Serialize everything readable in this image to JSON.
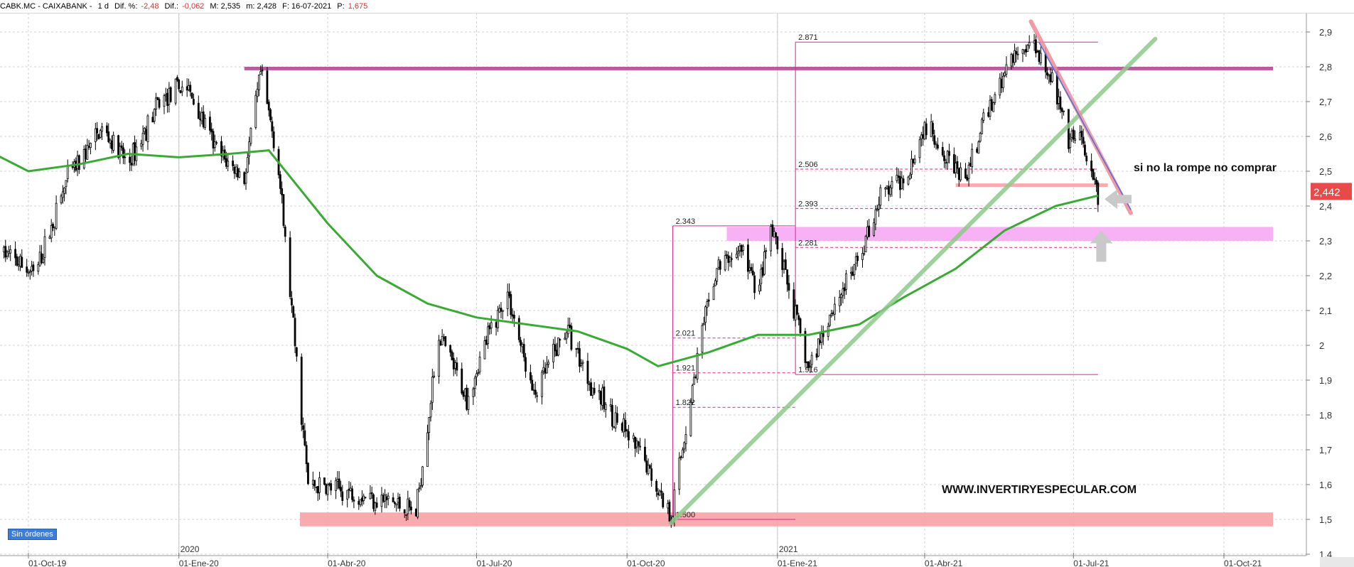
{
  "header": {
    "symbol": "CABK.MC - CAIXABANK -",
    "timeframe": "1 d",
    "dif_pct_label": "Dif. %:",
    "dif_pct_value": "-2,48",
    "dif_label": "Dif.:",
    "dif_value": "-0,062",
    "m": "M: 2,535",
    "m2": "m: 2,428",
    "date": "F: 16-07-2021",
    "p_label": "P:",
    "p_value": "1,675"
  },
  "sin_ordenes": "Sin órdenes",
  "price_badge": "2,442",
  "colors": {
    "candles": "#000000",
    "ma": "#3aaa35",
    "trend_up": "#8fc98b",
    "trend_down": "#f08a9a",
    "resistance": "#b04a96",
    "zone_pink": "#f7a9f3",
    "zone_red": "#f6a2a6",
    "fib": "#e0238a",
    "badge": "#e84a4a"
  },
  "chart_data": {
    "type": "candlestick",
    "title": "",
    "ylim": [
      1.4,
      2.95
    ],
    "yticks": [
      "2,9",
      "2,8",
      "2,7",
      "2,6",
      "2,5",
      "2,4",
      "2,3",
      "2,2",
      "2,1",
      "2",
      "1,9",
      "1,8",
      "1,7",
      "1,6",
      "1,5",
      "1,4"
    ],
    "xlabels": [
      {
        "date": "2019-10-01",
        "label": "01-Oct-19"
      },
      {
        "date": "2020-01-01",
        "label": "01-Ene-20"
      },
      {
        "date": "2020-04-01",
        "label": "01-Abr-20"
      },
      {
        "date": "2020-07-01",
        "label": "01-Jul-20"
      },
      {
        "date": "2020-10-01",
        "label": "01-Oct-20"
      },
      {
        "date": "2021-01-01",
        "label": "01-Ene-21"
      },
      {
        "date": "2021-04-01",
        "label": "01-Abr-21"
      },
      {
        "date": "2021-07-01",
        "label": "01-Jul-21"
      },
      {
        "date": "2021-10-01",
        "label": "01-Oct-21"
      }
    ],
    "year_labels": [
      {
        "date": "2020-01-01",
        "label": "2020"
      },
      {
        "date": "2021-01-01",
        "label": "2021"
      }
    ],
    "price_path": [
      [
        "2019-09-15",
        2.27
      ],
      [
        "2019-10-05",
        2.2
      ],
      [
        "2019-10-25",
        2.48
      ],
      [
        "2019-11-15",
        2.62
      ],
      [
        "2019-12-01",
        2.52
      ],
      [
        "2019-12-20",
        2.7
      ],
      [
        "2020-01-05",
        2.75
      ],
      [
        "2020-01-25",
        2.55
      ],
      [
        "2020-02-10",
        2.48
      ],
      [
        "2020-02-20",
        2.78
      ],
      [
        "2020-03-01",
        2.55
      ],
      [
        "2020-03-10",
        2.1
      ],
      [
        "2020-03-20",
        1.6
      ],
      [
        "2020-04-15",
        1.58
      ],
      [
        "2020-05-10",
        1.55
      ],
      [
        "2020-05-25",
        1.52
      ],
      [
        "2020-06-08",
        2.03
      ],
      [
        "2020-06-25",
        1.85
      ],
      [
        "2020-07-10",
        2.05
      ],
      [
        "2020-07-20",
        2.15
      ],
      [
        "2020-08-05",
        1.85
      ],
      [
        "2020-08-25",
        2.05
      ],
      [
        "2020-09-10",
        1.88
      ],
      [
        "2020-09-25",
        1.78
      ],
      [
        "2020-10-10",
        1.68
      ],
      [
        "2020-10-28",
        1.51
      ],
      [
        "2020-11-08",
        1.82
      ],
      [
        "2020-11-15",
        2.02
      ],
      [
        "2020-11-25",
        2.22
      ],
      [
        "2020-12-10",
        2.28
      ],
      [
        "2020-12-20",
        2.15
      ],
      [
        "2020-12-28",
        2.33
      ],
      [
        "2021-01-05",
        2.22
      ],
      [
        "2021-01-20",
        1.93
      ],
      [
        "2021-02-01",
        2.08
      ],
      [
        "2021-02-20",
        2.25
      ],
      [
        "2021-03-05",
        2.43
      ],
      [
        "2021-03-20",
        2.48
      ],
      [
        "2021-04-01",
        2.63
      ],
      [
        "2021-04-15",
        2.55
      ],
      [
        "2021-04-25",
        2.46
      ],
      [
        "2021-05-10",
        2.68
      ],
      [
        "2021-05-25",
        2.83
      ],
      [
        "2021-06-07",
        2.87
      ],
      [
        "2021-06-18",
        2.77
      ],
      [
        "2021-06-28",
        2.58
      ],
      [
        "2021-07-05",
        2.6
      ],
      [
        "2021-07-10",
        2.5
      ],
      [
        "2021-07-16",
        2.44
      ]
    ],
    "ma_path": [
      [
        "2019-09-10",
        2.55
      ],
      [
        "2019-10-01",
        2.5
      ],
      [
        "2019-11-01",
        2.52
      ],
      [
        "2019-12-01",
        2.55
      ],
      [
        "2020-01-01",
        2.54
      ],
      [
        "2020-02-01",
        2.55
      ],
      [
        "2020-02-25",
        2.56
      ],
      [
        "2020-04-01",
        2.35
      ],
      [
        "2020-05-01",
        2.2
      ],
      [
        "2020-06-01",
        2.12
      ],
      [
        "2020-07-01",
        2.08
      ],
      [
        "2020-08-01",
        2.06
      ],
      [
        "2020-09-01",
        2.04
      ],
      [
        "2020-10-01",
        1.99
      ],
      [
        "2020-10-20",
        1.94
      ],
      [
        "2020-11-20",
        1.98
      ],
      [
        "2020-12-20",
        2.03
      ],
      [
        "2021-01-20",
        2.03
      ],
      [
        "2021-02-20",
        2.06
      ],
      [
        "2021-03-20",
        2.14
      ],
      [
        "2021-04-20",
        2.22
      ],
      [
        "2021-05-20",
        2.33
      ],
      [
        "2021-06-20",
        2.4
      ],
      [
        "2021-07-16",
        2.43
      ]
    ],
    "horizontal_zones": [
      {
        "name": "resistance",
        "start": "2020-02-10",
        "end": "2021-10-31",
        "y0": 2.79,
        "y1": 2.8,
        "color": "#b04a96"
      },
      {
        "name": "pink-zone",
        "start": "2020-12-01",
        "end": "2021-10-31",
        "y0": 2.3,
        "y1": 2.34,
        "color": "#f7a9f3"
      },
      {
        "name": "support-zone",
        "start": "2020-03-15",
        "end": "2021-10-31",
        "y0": 1.48,
        "y1": 1.52,
        "color": "#f6a2a6"
      },
      {
        "name": "support-short",
        "start": "2021-04-20",
        "end": "2021-07-22",
        "y0": 2.455,
        "y1": 2.465,
        "color": "#f6a2a6"
      }
    ],
    "trendlines": [
      {
        "name": "uptrend",
        "start": [
          "2020-10-28",
          1.49
        ],
        "end": [
          "2021-08-20",
          2.88
        ],
        "color": "#8fc98b"
      },
      {
        "name": "downtrend-red",
        "start": [
          "2021-06-05",
          2.93
        ],
        "end": [
          "2021-08-05",
          2.38
        ],
        "color": "#f08a9a"
      },
      {
        "name": "downtrend-blue",
        "start": [
          "2021-06-10",
          2.87
        ],
        "end": [
          "2021-08-05",
          2.39
        ],
        "color": "#4a6fd8"
      }
    ],
    "fib_sets": [
      {
        "name": "fib-1",
        "start": "2020-10-29",
        "end": "2021-01-12",
        "levels": [
          {
            "label": "2.343",
            "value": 2.343
          },
          {
            "label": "2.021",
            "value": 2.021
          },
          {
            "label": "1.921",
            "value": 1.921
          },
          {
            "label": "1.822",
            "value": 1.822
          },
          {
            "label": "1.500",
            "value": 1.5
          }
        ]
      },
      {
        "name": "fib-2",
        "start": "2021-01-12",
        "end": "2021-07-16",
        "levels": [
          {
            "label": "2.871",
            "value": 2.871
          },
          {
            "label": "2.506",
            "value": 2.506
          },
          {
            "label": "2.393",
            "value": 2.393
          },
          {
            "label": "2.281",
            "value": 2.281
          },
          {
            "label": "1.916",
            "value": 1.916
          }
        ]
      }
    ],
    "annotations": {
      "note": "si no la rompe no comprar",
      "watermark": "WWW.INVERTIRYESPECULAR.COM",
      "arrows": [
        {
          "name": "arrow-left",
          "date": "2021-07-20",
          "value": 2.42,
          "direction": "left"
        },
        {
          "name": "arrow-up",
          "date": "2021-07-18",
          "value": 2.24,
          "direction": "up"
        }
      ],
      "last_price": {
        "date": "2021-07-16",
        "value": 2.442
      }
    }
  }
}
